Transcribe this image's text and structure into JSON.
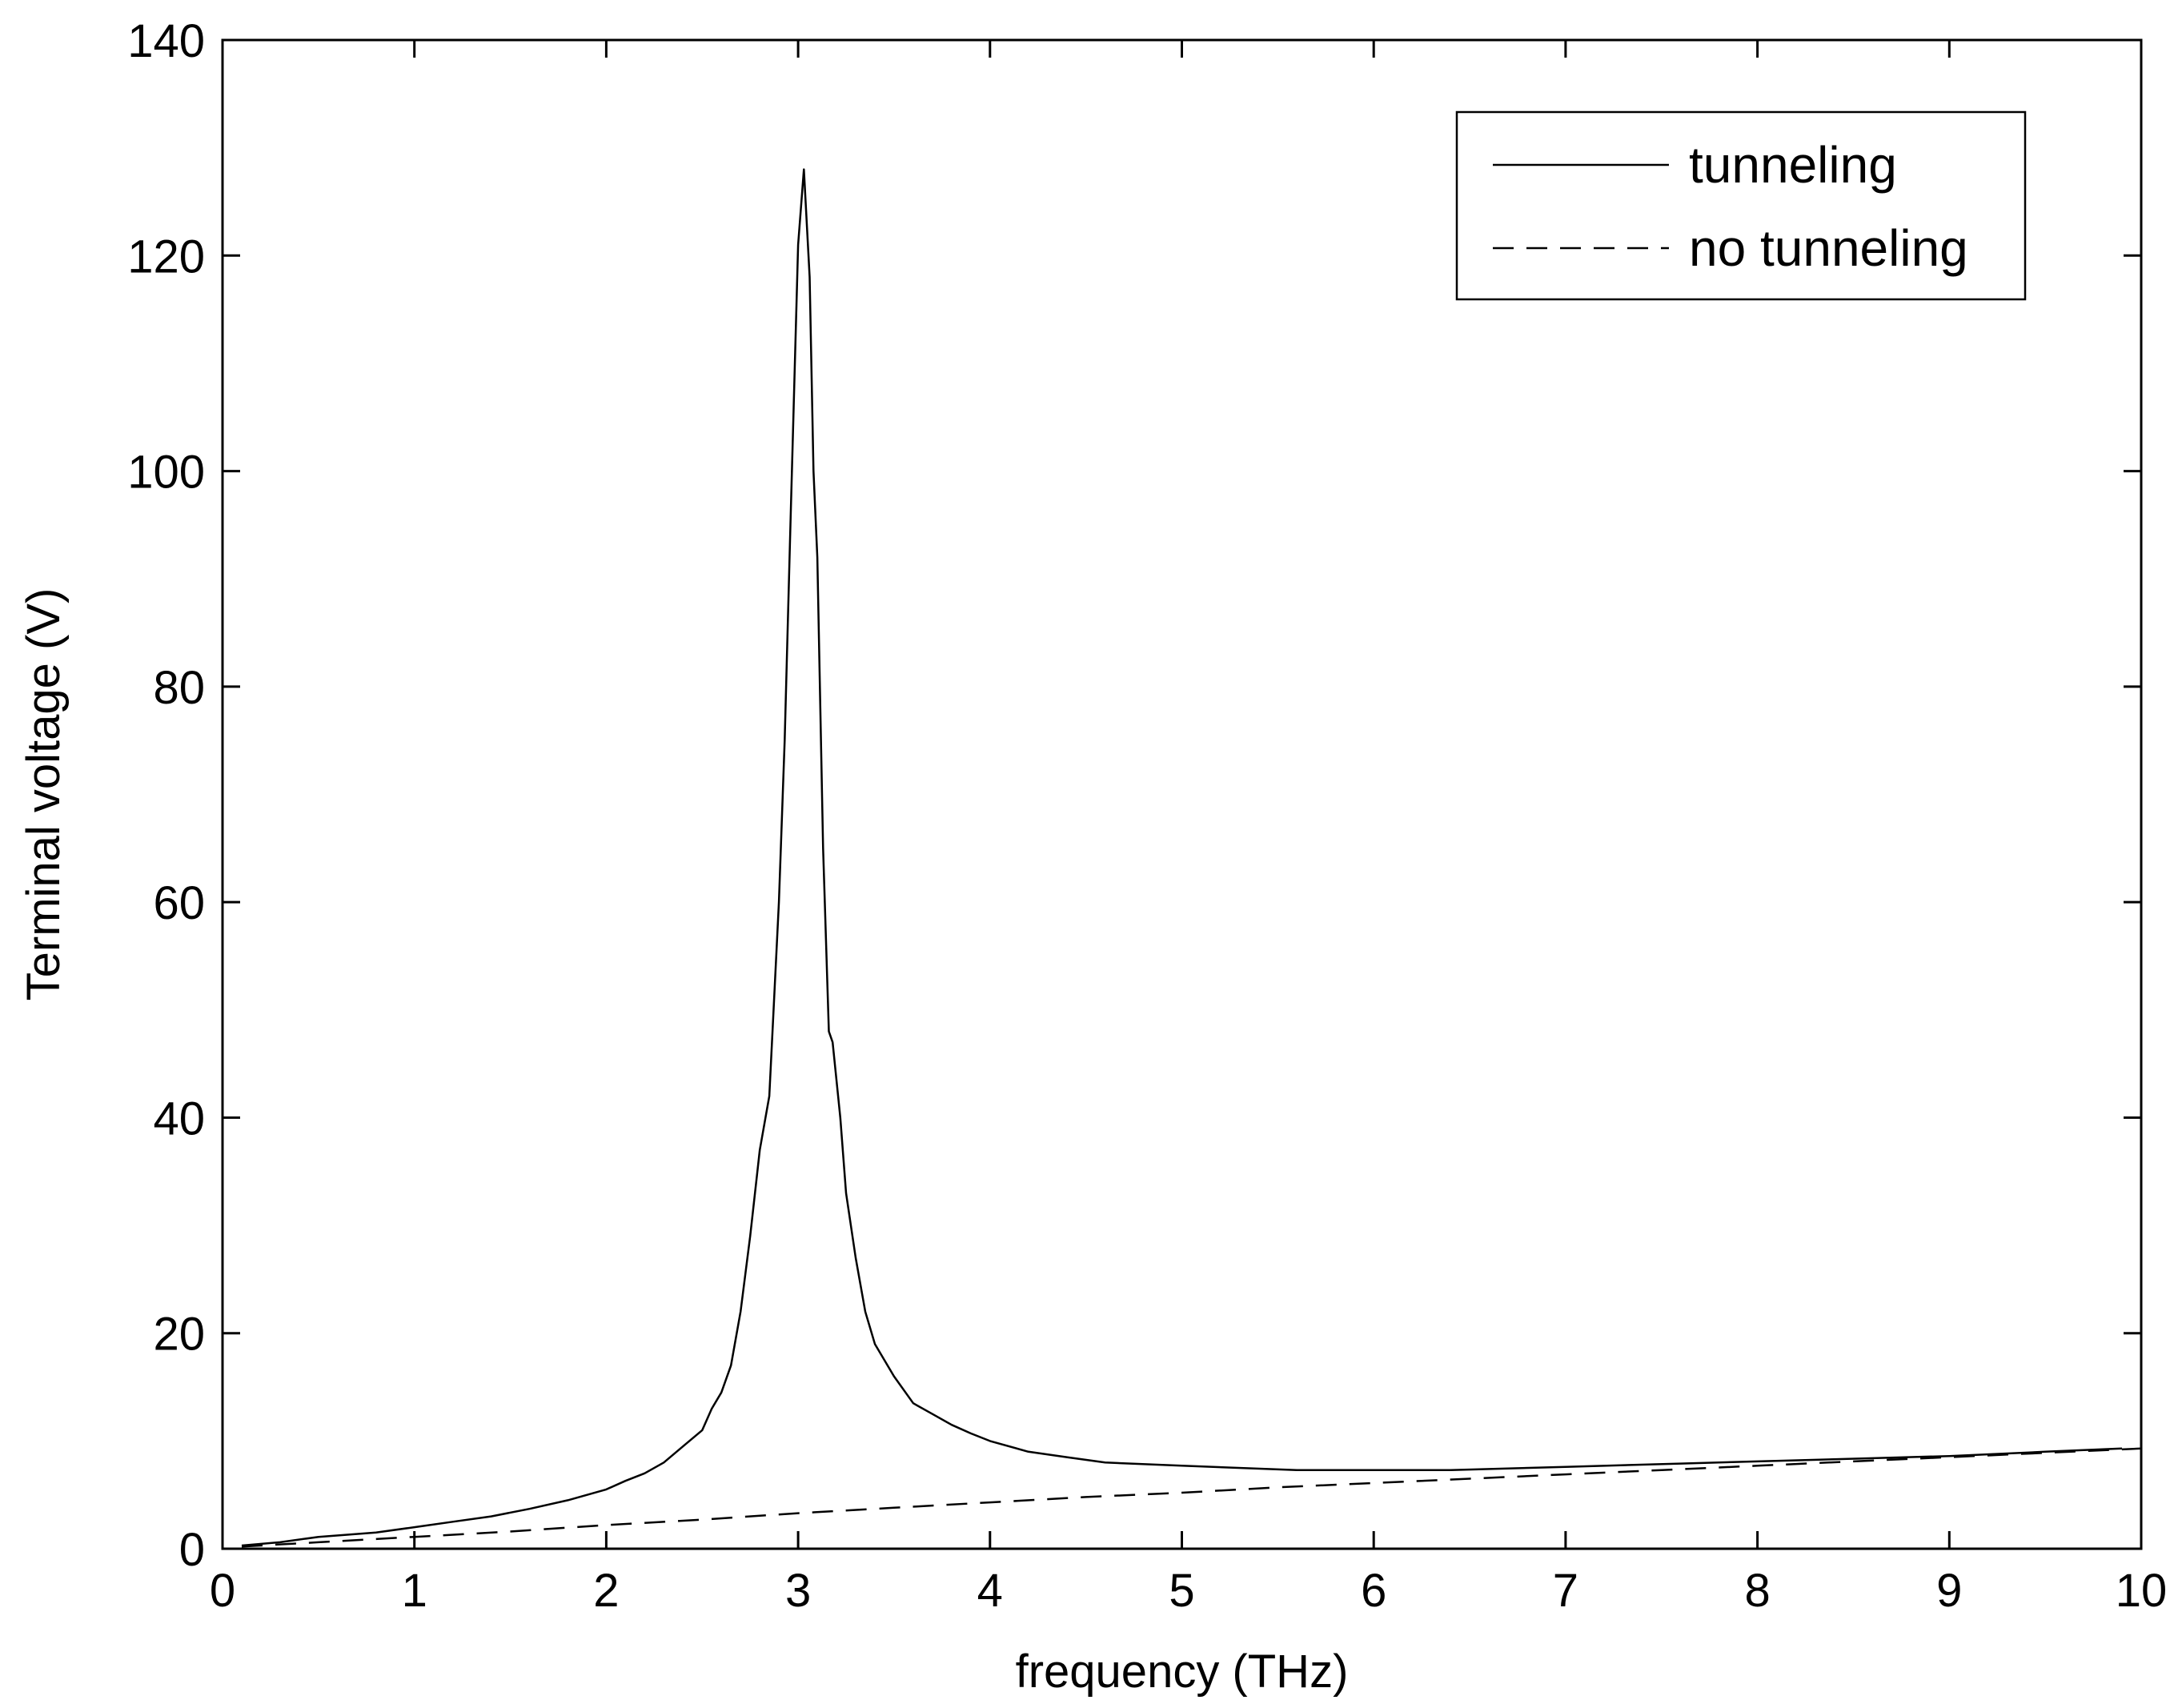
{
  "chart_data": {
    "type": "line",
    "title": "",
    "xlabel": "frequency (THz)",
    "ylabel": "Terminal voltage (V)",
    "xlim": [
      0,
      10
    ],
    "ylim": [
      0,
      140
    ],
    "xticks": [
      0,
      1,
      2,
      3,
      4,
      5,
      6,
      7,
      8,
      9,
      10
    ],
    "yticks": [
      0,
      20,
      40,
      60,
      80,
      100,
      120,
      140
    ],
    "grid": false,
    "legend": "top-right",
    "series": [
      {
        "name": "tunneling",
        "style": "solid",
        "color": "#000000",
        "x": [
          0.1,
          0.3,
          0.5,
          0.8,
          1.0,
          1.2,
          1.4,
          1.6,
          1.8,
          2.0,
          2.1,
          2.2,
          2.3,
          2.4,
          2.5,
          2.55,
          2.6,
          2.65,
          2.7,
          2.75,
          2.8,
          2.85,
          2.9,
          2.93,
          2.96,
          3.0,
          3.03,
          3.06,
          3.08,
          3.1,
          3.13,
          3.16,
          3.18,
          3.22,
          3.25,
          3.3,
          3.35,
          3.4,
          3.5,
          3.6,
          3.7,
          3.8,
          3.9,
          4.0,
          4.2,
          4.4,
          4.6,
          5.0,
          5.6,
          6.0,
          6.4,
          7.0,
          7.6,
          8.0,
          8.6,
          9.0,
          9.5,
          9.9
        ],
        "y": [
          0.3,
          0.6,
          1.1,
          1.5,
          2.0,
          2.5,
          3.0,
          3.7,
          4.5,
          5.5,
          6.3,
          7.0,
          8.0,
          9.5,
          11.0,
          13.0,
          14.5,
          17.0,
          22.0,
          29.0,
          37.0,
          42.0,
          60.0,
          75.0,
          95.0,
          121.0,
          128.0,
          118.0,
          100.0,
          92.0,
          65.0,
          48.0,
          47.0,
          40.0,
          33.0,
          27.0,
          22.0,
          19.0,
          16.0,
          13.5,
          12.5,
          11.5,
          10.7,
          10.0,
          9.0,
          8.5,
          8.0,
          7.7,
          7.3,
          7.3,
          7.3,
          7.6,
          7.9,
          8.1,
          8.4,
          8.6,
          9.0,
          9.3
        ]
      },
      {
        "name": "no tunneling",
        "style": "dashed",
        "color": "#000000",
        "x": [
          0.1,
          0.5,
          1.0,
          1.5,
          2.0,
          2.5,
          3.0,
          3.5,
          4.0,
          4.5,
          5.0,
          5.5,
          6.0,
          6.5,
          7.0,
          7.5,
          8.0,
          8.5,
          9.0,
          9.5,
          10.0
        ],
        "y": [
          0.2,
          0.6,
          1.1,
          1.6,
          2.2,
          2.7,
          3.3,
          3.8,
          4.3,
          4.8,
          5.2,
          5.7,
          6.1,
          6.5,
          6.9,
          7.3,
          7.7,
          8.1,
          8.5,
          8.9,
          9.3
        ]
      }
    ]
  }
}
